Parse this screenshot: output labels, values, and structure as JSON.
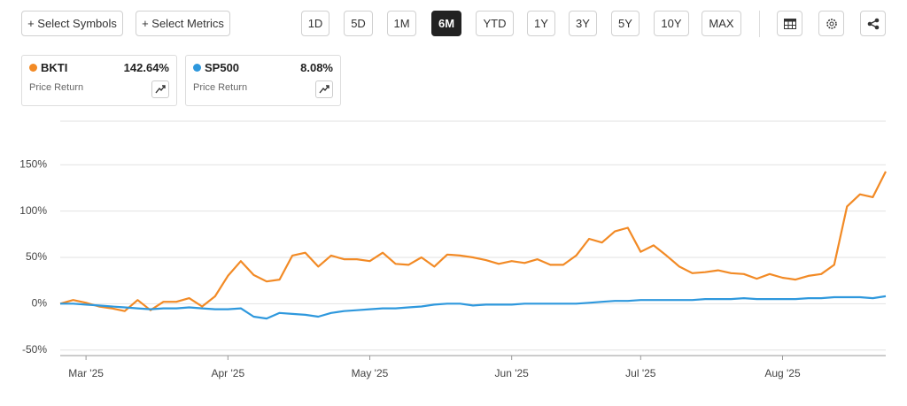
{
  "toolbar": {
    "buttons": [
      "+ Select Symbols",
      "+ Select Metrics"
    ],
    "ranges": [
      "1D",
      "5D",
      "1M",
      "6M",
      "YTD",
      "1Y",
      "3Y",
      "5Y",
      "10Y",
      "MAX"
    ],
    "active_range": "6M"
  },
  "legend_cards": [
    {
      "metric": "Price Return",
      "change": "142.64%"
    },
    {
      "metric": "Price Return",
      "change": "8.08%"
    }
  ],
  "chart_data": {
    "type": "line",
    "categories": [
      null,
      null,
      "Mar '25",
      null,
      null,
      null,
      null,
      null,
      null,
      null,
      null,
      null,
      null,
      "Apr '25",
      null,
      null,
      null,
      null,
      null,
      null,
      null,
      null,
      null,
      null,
      "May '25",
      null,
      null,
      null,
      null,
      null,
      null,
      null,
      null,
      null,
      null,
      "Jun '25",
      null,
      null,
      null,
      null,
      null,
      null,
      null,
      null,
      null,
      "Jul '25",
      null,
      null,
      null,
      null,
      null,
      null,
      null,
      null,
      null,
      null,
      "Aug '25",
      null,
      null,
      null,
      null,
      null,
      null,
      null,
      null
    ],
    "series": [
      {
        "name": "BKTI",
        "color": "#f28a25",
        "values": [
          0,
          4,
          1,
          -3,
          -5,
          -8,
          4,
          -7,
          2,
          2,
          6,
          -3,
          8,
          30,
          46,
          31,
          24,
          26,
          52,
          55,
          40,
          52,
          48,
          48,
          46,
          55,
          43,
          42,
          50,
          40,
          53,
          52,
          50,
          47,
          43,
          46,
          44,
          48,
          42,
          42,
          52,
          70,
          66,
          78,
          82,
          56,
          63,
          52,
          40,
          33,
          34,
          36,
          33,
          32,
          27,
          32,
          28,
          26,
          30,
          32,
          42,
          105,
          118,
          115,
          142.64
        ]
      },
      {
        "name": "SP500",
        "color": "#2e98dd",
        "values": [
          0,
          0,
          -1,
          -2,
          -3,
          -4,
          -5,
          -6,
          -5,
          -5,
          -4,
          -5,
          -6,
          -6,
          -5,
          -14,
          -16,
          -10,
          -11,
          -12,
          -14,
          -10,
          -8,
          -7,
          -6,
          -5,
          -5,
          -4,
          -3,
          -1,
          0,
          0,
          -2,
          -1,
          -1,
          -1,
          0,
          0,
          0,
          0,
          0,
          1,
          2,
          3,
          3,
          4,
          4,
          4,
          4,
          4,
          5,
          5,
          5,
          6,
          5,
          5,
          5,
          5,
          6,
          6,
          7,
          7,
          7,
          6,
          8.08
        ]
      }
    ],
    "ylim": [
      -56,
      197
    ],
    "yticks": [
      {
        "value": -50,
        "label": "-50%"
      },
      {
        "value": 0,
        "label": "0%"
      },
      {
        "value": 50,
        "label": "50%"
      },
      {
        "value": 100,
        "label": "100%"
      },
      {
        "value": 150,
        "label": "150%"
      }
    ],
    "grid": true
  }
}
